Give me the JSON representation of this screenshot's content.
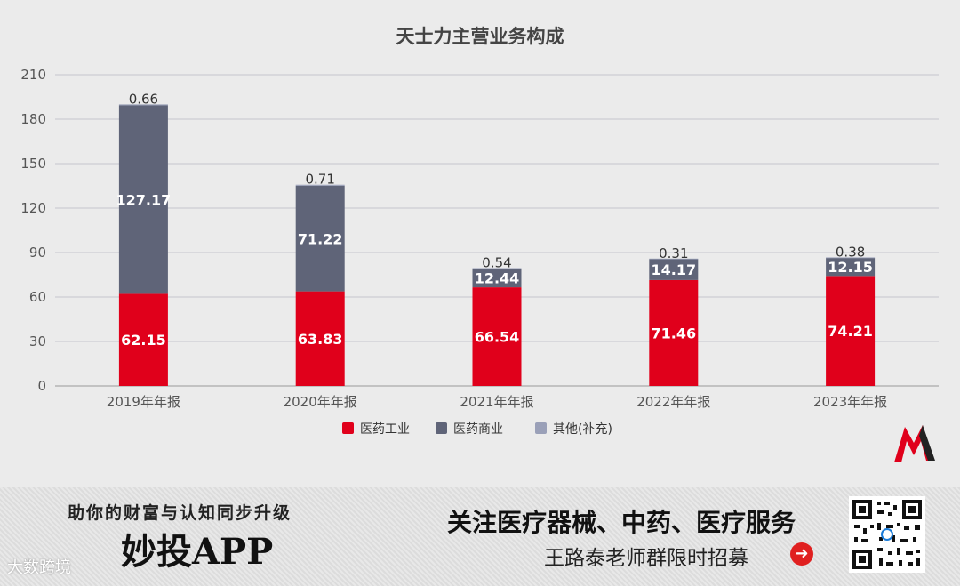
{
  "chart_data": {
    "type": "bar",
    "stacked": true,
    "title": "天士力主营业务构成",
    "categories": [
      "2019年年报",
      "2020年年报",
      "2021年年报",
      "2022年年报",
      "2023年年报"
    ],
    "series": [
      {
        "name": "医药工业",
        "color": "#e0001b",
        "values": [
          62.15,
          63.83,
          66.54,
          71.46,
          74.21
        ],
        "labels": [
          "62.15",
          "63.83",
          "66.54",
          "71.46",
          "74.21"
        ]
      },
      {
        "name": "医药商业",
        "color": "#5f6478",
        "values": [
          127.17,
          71.22,
          12.44,
          14.17,
          12.15
        ],
        "labels": [
          "127.17",
          "71.22",
          "12.44",
          "14.17",
          "12.15"
        ]
      },
      {
        "name": "其他(补充)",
        "color": "#9aa0b8",
        "values": [
          0.66,
          0.71,
          0.54,
          0.31,
          0.38
        ],
        "labels": [
          "0.66",
          "0.71",
          "0.54",
          "0.31",
          "0.38"
        ]
      }
    ],
    "ylim": [
      0,
      210
    ],
    "yticks": [
      0,
      30,
      60,
      90,
      120,
      150,
      180,
      210
    ],
    "ytick_labels": [
      "0",
      "30",
      "60",
      "90",
      "120",
      "150",
      "180",
      "210"
    ],
    "grid": true,
    "legend_position": "bottom-center"
  },
  "logo": {
    "icon": "m-logo-icon",
    "colors": [
      "#e0001b",
      "#222222"
    ]
  },
  "banner": {
    "left_top": "助你的财富与认知同步升级",
    "left_app": "妙投APP",
    "watermark": "大数跨境",
    "right_top": "关注医疗器械、中药、医疗服务",
    "right_bottom": "王路泰老师群限时招募",
    "arrow_icon": "arrow-right-circle-icon",
    "qr_icon": "qr-code-icon"
  }
}
